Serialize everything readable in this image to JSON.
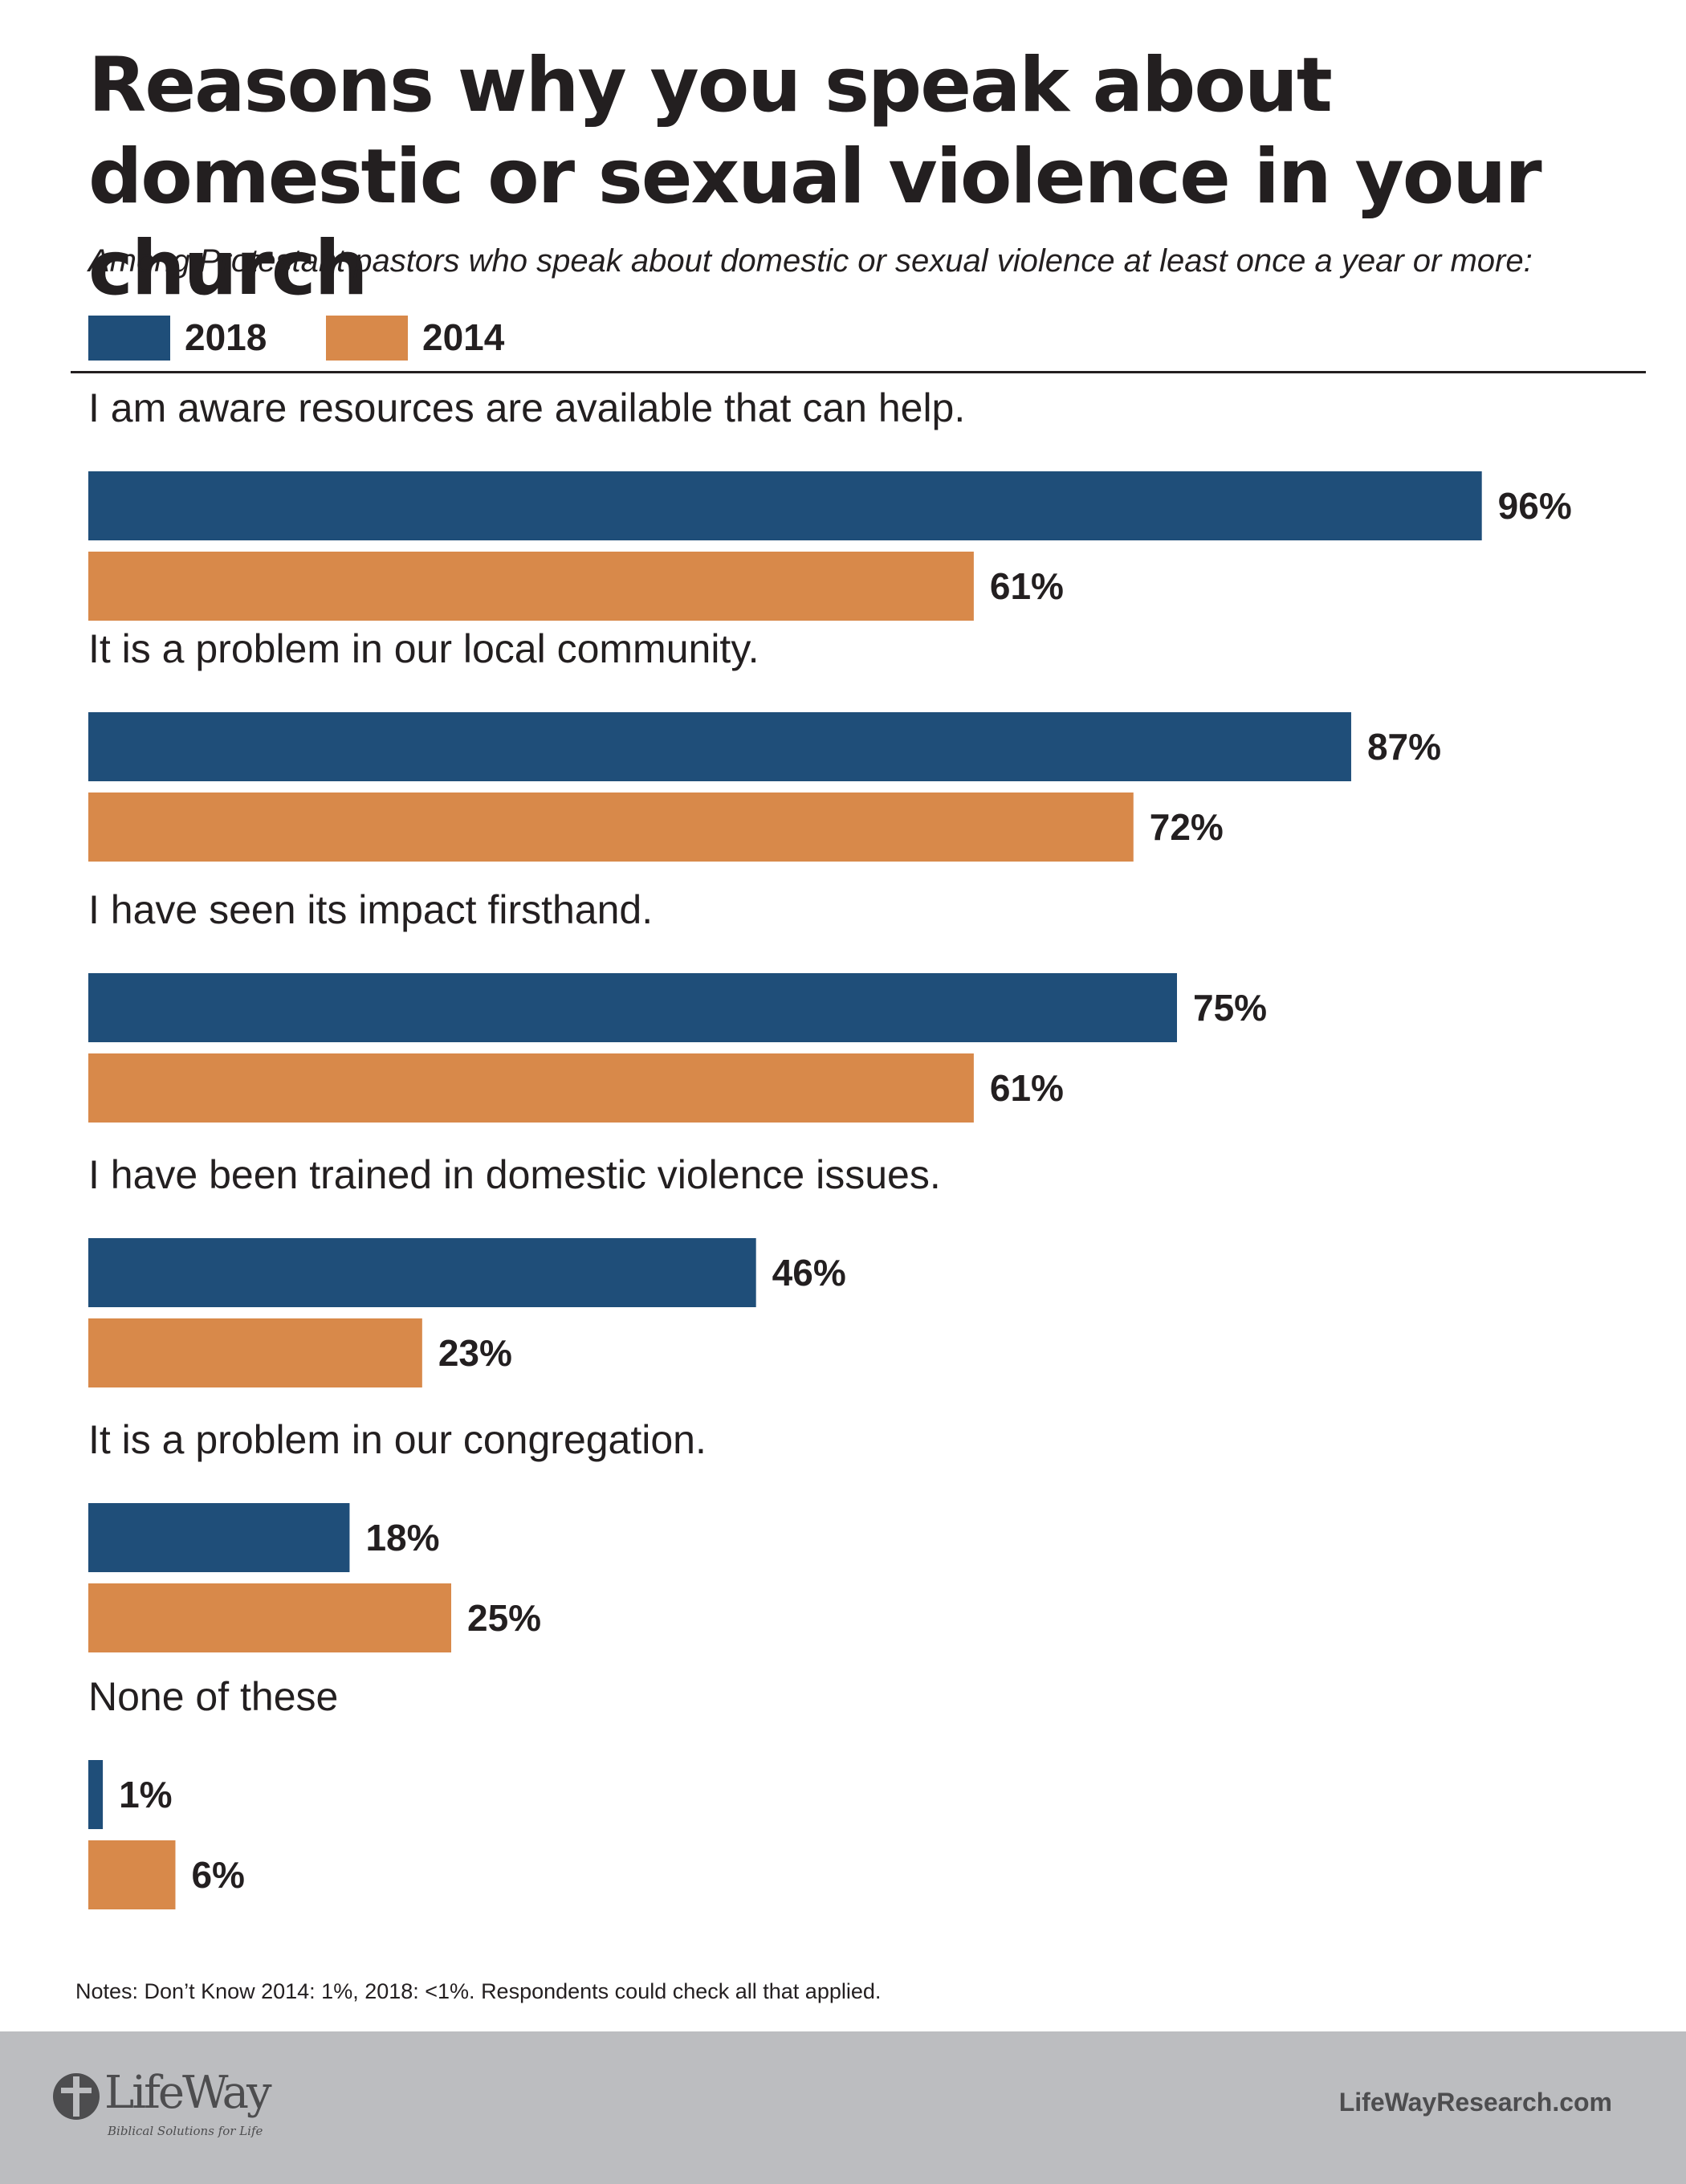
{
  "chart_data": {
    "type": "bar",
    "orientation": "horizontal",
    "title": "Reasons why you speak about domestic or sexual violence in your church",
    "subtitle": "Among Protestant pastors who speak about domestic or sexual violence at least once a year or more:",
    "categories": [
      "I am aware resources are available that can help.",
      "It is a problem in our local community.",
      "I have seen its impact firsthand.",
      "I have been trained in domestic violence issues.",
      "It is a problem in our congregation.",
      "None of these"
    ],
    "series": [
      {
        "name": "2018",
        "color": "#1f4e79",
        "values": [
          96,
          87,
          75,
          46,
          18,
          1
        ],
        "labels": [
          "96%",
          "87%",
          "75%",
          "46%",
          "18%",
          "1%"
        ]
      },
      {
        "name": "2014",
        "color": "#d8894a",
        "values": [
          61,
          72,
          61,
          23,
          25,
          6
        ],
        "labels": [
          "61%",
          "72%",
          "61%",
          "23%",
          "25%",
          "6%"
        ]
      }
    ],
    "xlim": [
      0,
      100
    ],
    "legend_position": "top-left",
    "grid": false
  },
  "notes": "Notes: Don’t Know 2014: 1%, 2018: <1%.  Respondents could check all that applied.",
  "footer": {
    "logo_text": "LifeWay",
    "logo_tagline": "Biblical Solutions for Life",
    "logo_icon": "lifeway-cross-icon",
    "website": "LifeWayResearch.com",
    "background_color": "#bcbdc0"
  }
}
